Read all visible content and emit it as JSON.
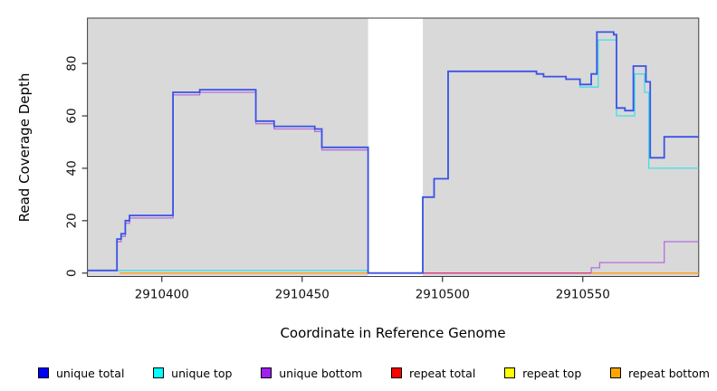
{
  "figure": {
    "ylabel": "Read Coverage Depth",
    "xlabel": "Coordinate in Reference Genome"
  },
  "colors": {
    "plot_background": "#d9d9d9",
    "plot_border": "#3c3c3c",
    "tick": "#333333",
    "tick_label": "#111111"
  },
  "legend": {
    "items": [
      {
        "id": "unique-total",
        "label": "unique total",
        "color": "#0000ff"
      },
      {
        "id": "unique-top",
        "label": "unique top",
        "color": "#00ffff"
      },
      {
        "id": "unique-bottom",
        "label": "unique bottom",
        "color": "#a020f0"
      },
      {
        "id": "repeat-total",
        "label": "repeat total",
        "color": "#ff0000"
      },
      {
        "id": "repeat-top",
        "label": "repeat top",
        "color": "#ffff00"
      },
      {
        "id": "repeat-bottom",
        "label": "repeat bottom",
        "color": "#ffa500"
      }
    ]
  },
  "chart_data": {
    "type": "line",
    "subtype": "step-after-coverage-plot",
    "title": "",
    "xlabel": "Coordinate in Reference Genome",
    "ylabel": "Read Coverage Depth",
    "xlim": [
      2910373.5,
      2910591.3
    ],
    "ylim": [
      -1.3,
      97.3
    ],
    "x_ticks": [
      2910400,
      2910450,
      2910500,
      2910550
    ],
    "x_tick_labels": [
      "2910400",
      "2910450",
      "2910500",
      "2910550"
    ],
    "y_ticks": [
      0,
      20,
      40,
      60,
      80
    ],
    "y_tick_labels": [
      "0",
      "20",
      "40",
      "60",
      "80"
    ],
    "grid": false,
    "legend_position": "bottom",
    "coverage_regions": [
      [
        2910373.5,
        2910473.5
      ],
      [
        2910493,
        2910591.3
      ]
    ],
    "gap_region": [
      2910473.5,
      2910493
    ],
    "series": [
      {
        "name": "repeat top",
        "color": "#f0e020",
        "width": 1.2,
        "segments": [
          [
            [
              2910385,
              0
            ],
            [
              2910473.5,
              0
            ]
          ]
        ]
      },
      {
        "name": "unique bottom",
        "color": "#b26fdd",
        "width": 1.3,
        "segments": [
          [
            [
              2910373.5,
              1
            ],
            [
              2910384,
              12
            ],
            [
              2910385.5,
              14
            ],
            [
              2910387,
              19
            ],
            [
              2910388.5,
              21
            ],
            [
              2910404,
              68
            ],
            [
              2910413.5,
              69
            ],
            [
              2910433.5,
              57
            ],
            [
              2910440,
              55
            ],
            [
              2910454.5,
              54
            ],
            [
              2910457,
              47
            ],
            [
              2910473.5,
              0
            ],
            [
              2910553,
              2
            ],
            [
              2910556,
              4
            ],
            [
              2910579,
              12
            ],
            [
              2910591.3,
              12
            ]
          ]
        ]
      },
      {
        "name": "repeat total",
        "color": "#dd3366",
        "width": 1.2,
        "segments": [
          [
            [
              2910493,
              0
            ],
            [
              2910591.3,
              0
            ]
          ]
        ]
      },
      {
        "name": "repeat bottom",
        "color": "#ff9e1f",
        "width": 1.5,
        "segments": [
          [
            [
              2910385,
              0
            ],
            [
              2910473.5,
              0
            ]
          ],
          [
            [
              2910553,
              0
            ],
            [
              2910591.3,
              0
            ]
          ]
        ]
      },
      {
        "name": "unique top",
        "color": "#40dfe8",
        "width": 1.3,
        "segments": [
          [
            [
              2910384,
              1
            ],
            [
              2910473.5,
              0
            ],
            [
              2910493,
              29
            ],
            [
              2910497,
              36
            ],
            [
              2910502,
              77
            ],
            [
              2910533.5,
              76
            ],
            [
              2910536,
              75
            ],
            [
              2910544,
              74
            ],
            [
              2910549,
              71
            ],
            [
              2910555.5,
              89
            ],
            [
              2910562,
              60
            ],
            [
              2910568.5,
              76
            ],
            [
              2910572,
              69
            ],
            [
              2910573.5,
              40
            ],
            [
              2910591.3,
              40
            ]
          ]
        ]
      },
      {
        "name": "unique total",
        "color": "#3b52e6",
        "width": 1.8,
        "segments": [
          [
            [
              2910373.5,
              1
            ],
            [
              2910384,
              13
            ],
            [
              2910385.5,
              15
            ],
            [
              2910387,
              20
            ],
            [
              2910388.5,
              22
            ],
            [
              2910404,
              69
            ],
            [
              2910413.5,
              70
            ],
            [
              2910433.5,
              58
            ],
            [
              2910440,
              56
            ],
            [
              2910454.5,
              55
            ],
            [
              2910457,
              48
            ],
            [
              2910473.5,
              0
            ],
            [
              2910493,
              29
            ],
            [
              2910497,
              36
            ],
            [
              2910502,
              77
            ],
            [
              2910533.5,
              76
            ],
            [
              2910536,
              75
            ],
            [
              2910544,
              74
            ],
            [
              2910549,
              72
            ],
            [
              2910553,
              76
            ],
            [
              2910555,
              92
            ],
            [
              2910561,
              91
            ],
            [
              2910562,
              63
            ],
            [
              2910565,
              62
            ],
            [
              2910568,
              79
            ],
            [
              2910572.5,
              73
            ],
            [
              2910574,
              44
            ],
            [
              2910579,
              52
            ],
            [
              2910591.3,
              52
            ]
          ]
        ]
      }
    ]
  }
}
